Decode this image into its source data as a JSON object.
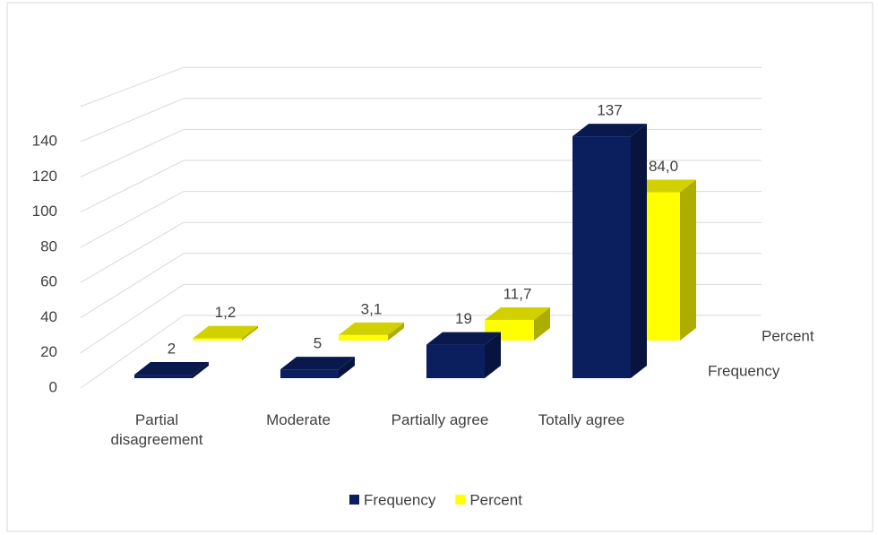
{
  "chart_data": {
    "type": "bar3d",
    "categories": [
      "Partial disagreement",
      "Moderate",
      "Partially agree",
      "Totally agree"
    ],
    "series": [
      {
        "name": "Frequency",
        "color": "#0b1e5e",
        "values": [
          2,
          5,
          19,
          137
        ]
      },
      {
        "name": "Percent",
        "color": "#ffff00",
        "values": [
          1.2,
          3.1,
          11.7,
          84.0
        ],
        "value_labels": [
          "1,2",
          "3,1",
          "11,7",
          "84,0"
        ]
      }
    ],
    "ylim": [
      0,
      160
    ],
    "yticks": [
      0,
      20,
      40,
      60,
      80,
      100,
      120,
      140
    ],
    "grid": true,
    "legend": "bottom"
  }
}
